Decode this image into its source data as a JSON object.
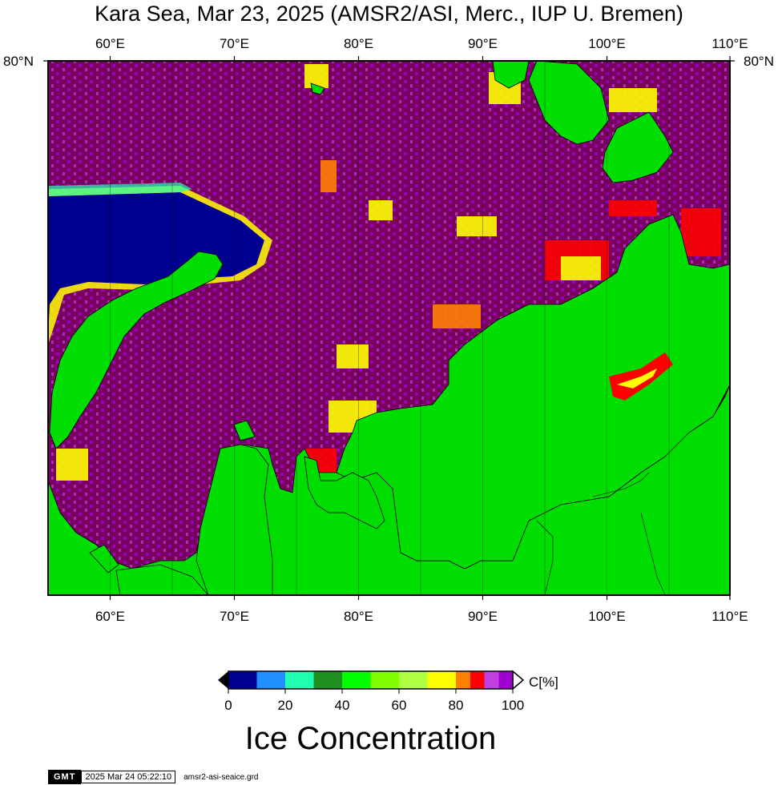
{
  "title": "Kara Sea, Mar 23, 2025 (AMSR2/ASI, Merc., IUP U. Bremen)",
  "map": {
    "projection": "Mercator",
    "lon_range": [
      55,
      110
    ],
    "lat_top_label": "80°N",
    "lon_ticks": [
      "60°E",
      "70°E",
      "80°E",
      "90°E",
      "100°E",
      "110°E"
    ],
    "lat_ticks": [
      "80°N",
      "80°N"
    ],
    "land_color": "#00dd00",
    "ocean_open_color": "#000090",
    "ice_high_color": "#7a0060"
  },
  "colorbar": {
    "ticks": [
      "0",
      "20",
      "40",
      "60",
      "80",
      "100"
    ],
    "unit": "C[%]",
    "label": "Ice Concentration",
    "colors": [
      "#000090",
      "#2090ff",
      "#20ffb0",
      "#209020",
      "#00ff00",
      "#80ff00",
      "#b0ff40",
      "#ffff00",
      "#ff8000",
      "#ff0000",
      "#c040e0",
      "#a000d0"
    ]
  },
  "footer": {
    "logo": "GMT",
    "timestamp": "2025 Mar 24 05:22:10",
    "filename": "amsr2-asi-seaice.grd"
  }
}
